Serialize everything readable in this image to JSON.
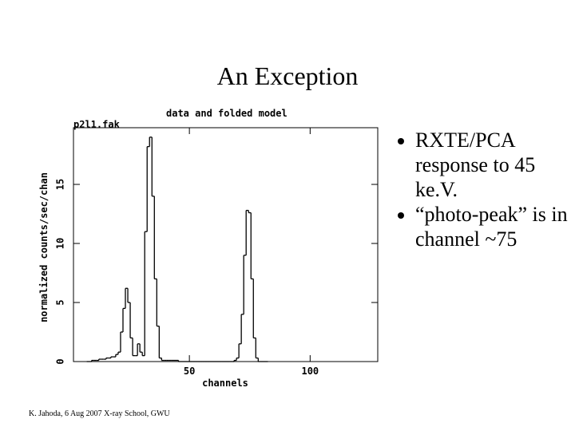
{
  "slide": {
    "title": "An Exception",
    "bullets": [
      "RXTE/PCA response to 45 ke.V.",
      "“photo-peak” is in channel ~75"
    ],
    "footer": "K. Jahoda, 6 Aug 2007 X-ray School, GWU"
  },
  "chart_data": {
    "type": "step",
    "title": "data and folded model",
    "subtitle": "p2l1.fak",
    "x_label": "channels",
    "y_label": "normalized counts/sec/chan",
    "color": "#000000",
    "x": [
      8,
      9,
      10,
      11,
      12,
      13,
      14,
      15,
      16,
      17,
      18,
      19,
      20,
      21,
      22,
      23,
      24,
      25,
      26,
      27,
      28,
      29,
      30,
      31,
      32,
      33,
      34,
      35,
      36,
      37,
      38,
      39,
      40,
      41,
      42,
      43,
      44,
      45,
      46,
      47,
      48,
      49,
      50,
      51,
      52,
      53,
      54,
      55,
      56,
      57,
      58,
      59,
      60,
      61,
      62,
      63,
      64,
      65,
      66,
      67,
      68,
      69,
      70,
      71,
      72,
      73,
      74,
      75,
      76,
      77,
      78,
      79,
      80,
      81,
      82
    ],
    "values": [
      0,
      0,
      0.1,
      0.1,
      0.1,
      0.2,
      0.2,
      0.2,
      0.3,
      0.3,
      0.4,
      0.4,
      0.6,
      0.8,
      2.5,
      4.5,
      6.2,
      5,
      2,
      0.5,
      0.5,
      1.5,
      0.8,
      0.5,
      11,
      18.2,
      19,
      14,
      7,
      3,
      0.3,
      0.1,
      0.1,
      0.1,
      0.1,
      0.1,
      0.1,
      0.1,
      0,
      0,
      0,
      0,
      0,
      0,
      0,
      0,
      0,
      0,
      0,
      0,
      0,
      0,
      0,
      0,
      0,
      0,
      0,
      0,
      0,
      0,
      0,
      0.1,
      0.3,
      1.5,
      4,
      9,
      12.8,
      12.6,
      7,
      2,
      0.3,
      0,
      0,
      0,
      0
    ],
    "xlim": [
      2,
      128
    ],
    "ylim": [
      0,
      19.8
    ],
    "xticks": [
      50,
      100
    ],
    "yticks": [
      0,
      5,
      10,
      15
    ]
  }
}
